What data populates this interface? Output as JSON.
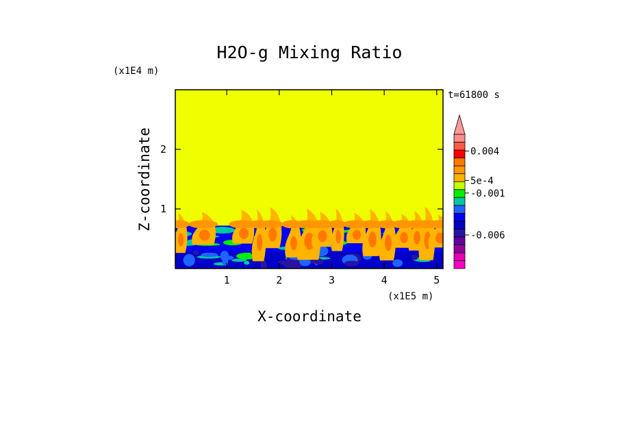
{
  "chart_data": {
    "type": "heatmap",
    "title": "H2O-g Mixing Ratio",
    "xlabel": "X-coordinate",
    "ylabel": "Z-coordinate",
    "x_unit": "(x1E5 m)",
    "y_unit": "(x1E4 m)",
    "time_label": "t=61800 s",
    "xlim": [
      0.02,
      5.12
    ],
    "ylim": [
      0.0,
      3.0
    ],
    "x_ticks": [
      "1",
      "2",
      "3",
      "4",
      "5"
    ],
    "y_ticks": [
      "1",
      "2"
    ],
    "x_tick_values": [
      1,
      2,
      3,
      4,
      5
    ],
    "y_tick_values": [
      1,
      2
    ],
    "grid": false,
    "field": {
      "top_of_moist_layer_z": 0.72,
      "max_plume_height_z": 1.05,
      "background_value_note": "uniform above plume region"
    },
    "colorbar": {
      "orientation": "vertical",
      "placement": "right",
      "extend": "max",
      "labels": [
        "0.004",
        "5e-4",
        "-0.001",
        "-0.006"
      ],
      "label_values": [
        0.004,
        0.0005,
        -0.001,
        -0.006
      ],
      "levels": [
        -0.01,
        -0.008,
        -0.007,
        -0.006,
        -0.005,
        -0.004,
        -0.003,
        -0.002,
        -0.001,
        -0.0005,
        0,
        0.0005,
        0.001,
        0.002,
        0.003,
        0.004,
        0.005,
        0.006
      ],
      "colors": [
        "#ff00c8",
        "#e600b4",
        "#9600a0",
        "#6400a0",
        "#2814a0",
        "#0000c8",
        "#0000f5",
        "#1e64ff",
        "#00c8a0",
        "#00f000",
        "#c8ff00",
        "#ffb400",
        "#ff9600",
        "#ff7800",
        "#ff0000",
        "#ff5a46",
        "#ff8c8c",
        "#ff9a9a"
      ],
      "background_color": "#f0ff00"
    }
  }
}
